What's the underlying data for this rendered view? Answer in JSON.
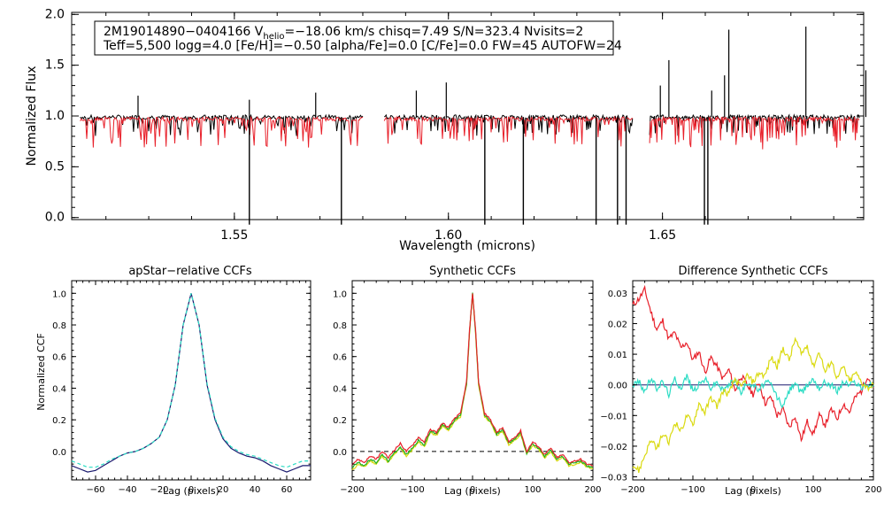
{
  "colors": {
    "black": "#000000",
    "red": "#e8202a",
    "cyan": "#2bdcc4",
    "navy": "#1a1a6e",
    "yellow": "#dada10",
    "green": "#20b020",
    "white_bg": "#ffffff"
  },
  "chart_data": [
    {
      "type": "line",
      "id": "spectrum",
      "title": "",
      "xlabel": "Wavelength (microns)",
      "ylabel": "Normalized Flux",
      "xlim": [
        1.512,
        1.697
      ],
      "ylim": [
        -0.02,
        2.02
      ],
      "xticks": [
        "1.55",
        "1.60",
        "1.65"
      ],
      "xtick_values": [
        1.55,
        1.6,
        1.65
      ],
      "yticks": [
        "0.0",
        "0.5",
        "1.0",
        "1.5",
        "2.0"
      ],
      "ytick_values": [
        0.0,
        0.5,
        1.0,
        1.5,
        2.0
      ],
      "info_line1_prefix": "2M19014890−0404166  V",
      "info_sub": "helio",
      "info_line1_suffix": "=−18.06 km/s  chisq=7.49  S/N=323.4  Nvisits=2",
      "info_line2": "Teff=5,500 logg=4.0 [Fe/H]=−0.50 [alpha/Fe]=0.0 [C/Fe]=0.0 FW=45 AUTOFW=24",
      "chips": [
        [
          1.514,
          1.58
        ],
        [
          1.585,
          1.643
        ],
        [
          1.647,
          1.696
        ]
      ],
      "series": [
        {
          "name": "observed",
          "color": "black",
          "continuum": 0.99
        },
        {
          "name": "model",
          "color": "red",
          "continuum": 0.97
        }
      ],
      "emission_spikes": [
        [
          1.5275,
          1.2
        ],
        [
          1.5535,
          1.16
        ],
        [
          1.569,
          1.23
        ],
        [
          1.5995,
          1.33
        ],
        [
          1.5925,
          1.25
        ],
        [
          1.6495,
          1.3
        ],
        [
          1.6515,
          1.55
        ],
        [
          1.6615,
          1.25
        ],
        [
          1.6645,
          1.4
        ],
        [
          1.6975,
          1.45
        ],
        [
          1.6655,
          1.85
        ],
        [
          1.6835,
          1.88
        ]
      ],
      "deep_absorptions": [
        [
          1.5535,
          0.0
        ],
        [
          1.575,
          0.0
        ],
        [
          1.6085,
          0.0
        ],
        [
          1.6175,
          0.0
        ],
        [
          1.6345,
          0.0
        ],
        [
          1.6395,
          0.0
        ],
        [
          1.6415,
          0.0
        ],
        [
          1.6598,
          0.0
        ],
        [
          1.6606,
          0.0
        ]
      ]
    },
    {
      "type": "line",
      "id": "apstar_ccf",
      "title": "apStar−relative CCFs",
      "xlabel": "Lag (pixels)",
      "ylabel": "Normalized CCF",
      "xlim": [
        -75,
        75
      ],
      "ylim": [
        -0.18,
        1.08
      ],
      "xticks": [
        "−60",
        "−40",
        "−20",
        "0",
        "20",
        "40",
        "60"
      ],
      "xtick_values": [
        -60,
        -40,
        -20,
        0,
        20,
        40,
        60
      ],
      "yticks": [
        "0.0",
        "0.2",
        "0.4",
        "0.6",
        "0.8",
        "1.0"
      ],
      "ytick_values": [
        0.0,
        0.2,
        0.4,
        0.6,
        0.8,
        1.0
      ],
      "series": [
        {
          "name": "navy",
          "color": "navy",
          "x": [
            -75,
            -70,
            -65,
            -60,
            -55,
            -50,
            -45,
            -40,
            -35,
            -30,
            -25,
            -20,
            -15,
            -10,
            -5,
            0,
            5,
            10,
            15,
            20,
            25,
            30,
            35,
            40,
            45,
            50,
            55,
            60,
            65,
            70,
            75
          ],
          "y": [
            -0.09,
            -0.11,
            -0.13,
            -0.12,
            -0.09,
            -0.06,
            -0.03,
            -0.01,
            0.0,
            0.02,
            0.05,
            0.09,
            0.2,
            0.42,
            0.8,
            1.0,
            0.8,
            0.42,
            0.2,
            0.08,
            0.02,
            -0.01,
            -0.03,
            -0.04,
            -0.06,
            -0.09,
            -0.11,
            -0.13,
            -0.11,
            -0.09,
            -0.09
          ]
        },
        {
          "name": "cyan",
          "color": "cyan",
          "x": [
            -75,
            -70,
            -65,
            -60,
            -55,
            -50,
            -45,
            -40,
            -35,
            -30,
            -25,
            -20,
            -15,
            -10,
            -5,
            0,
            5,
            10,
            15,
            20,
            25,
            30,
            35,
            40,
            45,
            50,
            55,
            60,
            65,
            70,
            75
          ],
          "y": [
            -0.06,
            -0.08,
            -0.1,
            -0.1,
            -0.08,
            -0.05,
            -0.03,
            -0.01,
            0.0,
            0.02,
            0.05,
            0.09,
            0.2,
            0.42,
            0.8,
            1.0,
            0.8,
            0.43,
            0.21,
            0.09,
            0.03,
            0.0,
            -0.02,
            -0.03,
            -0.05,
            -0.07,
            -0.09,
            -0.1,
            -0.08,
            -0.06,
            -0.06
          ]
        }
      ]
    },
    {
      "type": "line",
      "id": "synthetic_ccf",
      "title": "Synthetic CCFs",
      "xlabel": "Lag (pixels)",
      "ylabel": "",
      "xlim": [
        -200,
        200
      ],
      "ylim": [
        -0.18,
        1.08
      ],
      "xticks": [
        "−200",
        "−100",
        "0",
        "100",
        "200"
      ],
      "xtick_values": [
        -200,
        -100,
        0,
        100,
        200
      ],
      "yticks": [
        "0.0",
        "0.2",
        "0.4",
        "0.6",
        "0.8",
        "1.0"
      ],
      "ytick_values": [
        0.0,
        0.2,
        0.4,
        0.6,
        0.8,
        1.0
      ],
      "zero_line": "dashed",
      "series": [
        {
          "name": "yellow",
          "color": "yellow",
          "x": [
            -200,
            -190,
            -180,
            -170,
            -160,
            -150,
            -140,
            -130,
            -120,
            -110,
            -100,
            -90,
            -80,
            -70,
            -60,
            -50,
            -40,
            -30,
            -20,
            -10,
            -5,
            0,
            5,
            10,
            20,
            30,
            40,
            50,
            60,
            70,
            80,
            90,
            100,
            110,
            120,
            130,
            140,
            150,
            160,
            170,
            180,
            190,
            200
          ],
          "y": [
            -0.12,
            -0.08,
            -0.1,
            -0.06,
            -0.08,
            -0.03,
            -0.07,
            -0.02,
            0.02,
            -0.03,
            0.01,
            0.06,
            0.03,
            0.12,
            0.1,
            0.16,
            0.13,
            0.19,
            0.22,
            0.42,
            0.75,
            1.0,
            0.75,
            0.42,
            0.22,
            0.18,
            0.1,
            0.13,
            0.04,
            0.07,
            0.11,
            -0.02,
            0.04,
            0.01,
            -0.04,
            0.0,
            -0.06,
            -0.04,
            -0.09,
            -0.08,
            -0.07,
            -0.1,
            -0.11
          ]
        },
        {
          "name": "green",
          "color": "green",
          "x": [
            -200,
            -190,
            -180,
            -170,
            -160,
            -150,
            -140,
            -130,
            -120,
            -110,
            -100,
            -90,
            -80,
            -70,
            -60,
            -50,
            -40,
            -30,
            -20,
            -10,
            -5,
            0,
            5,
            10,
            20,
            30,
            40,
            50,
            60,
            70,
            80,
            90,
            100,
            110,
            120,
            130,
            140,
            150,
            160,
            170,
            180,
            190,
            200
          ],
          "y": [
            -0.1,
            -0.07,
            -0.09,
            -0.05,
            -0.07,
            -0.02,
            -0.06,
            -0.01,
            0.03,
            -0.02,
            0.02,
            0.07,
            0.04,
            0.13,
            0.11,
            0.17,
            0.14,
            0.2,
            0.23,
            0.43,
            0.76,
            1.0,
            0.76,
            0.43,
            0.23,
            0.19,
            0.11,
            0.14,
            0.05,
            0.08,
            0.12,
            -0.01,
            0.05,
            0.02,
            -0.03,
            0.01,
            -0.05,
            -0.03,
            -0.08,
            -0.07,
            -0.06,
            -0.09,
            -0.1
          ]
        },
        {
          "name": "red",
          "color": "red",
          "x": [
            -200,
            -190,
            -180,
            -170,
            -160,
            -150,
            -140,
            -130,
            -120,
            -110,
            -100,
            -90,
            -80,
            -70,
            -60,
            -50,
            -40,
            -30,
            -20,
            -10,
            -5,
            0,
            5,
            10,
            20,
            30,
            40,
            50,
            60,
            70,
            80,
            90,
            100,
            110,
            120,
            130,
            140,
            150,
            160,
            170,
            180,
            190,
            200
          ],
          "y": [
            -0.08,
            -0.05,
            -0.07,
            -0.03,
            -0.05,
            0.0,
            -0.04,
            0.01,
            0.05,
            0.0,
            0.04,
            0.09,
            0.06,
            0.14,
            0.12,
            0.18,
            0.15,
            0.21,
            0.24,
            0.44,
            0.77,
            1.0,
            0.77,
            0.44,
            0.24,
            0.2,
            0.12,
            0.15,
            0.06,
            0.09,
            0.13,
            0.0,
            0.06,
            0.03,
            -0.02,
            0.02,
            -0.04,
            -0.02,
            -0.07,
            -0.06,
            -0.05,
            -0.08,
            -0.09
          ]
        }
      ]
    },
    {
      "type": "line",
      "id": "difference_ccf",
      "title": "Difference Synthetic CCFs",
      "xlabel": "Lag (pixels)",
      "ylabel": "",
      "xlim": [
        -200,
        200
      ],
      "ylim": [
        -0.031,
        0.034
      ],
      "xticks": [
        "−200",
        "−100",
        "0",
        "100",
        "200"
      ],
      "xtick_values": [
        -200,
        -100,
        0,
        100,
        200
      ],
      "yticks": [
        "−0.03",
        "−0.02",
        "−0.01",
        "0.00",
        "0.01",
        "0.02",
        "0.03"
      ],
      "ytick_values": [
        -0.03,
        -0.02,
        -0.01,
        0.0,
        0.01,
        0.02,
        0.03
      ],
      "zero_line": "solid",
      "series": [
        {
          "name": "red",
          "color": "red",
          "x": [
            -200,
            -190,
            -180,
            -170,
            -160,
            -150,
            -140,
            -130,
            -120,
            -110,
            -100,
            -90,
            -80,
            -70,
            -60,
            -50,
            -40,
            -30,
            -20,
            -10,
            0,
            10,
            20,
            30,
            40,
            50,
            60,
            70,
            80,
            90,
            100,
            110,
            120,
            130,
            140,
            150,
            160,
            170,
            180,
            190,
            200
          ],
          "y": [
            0.026,
            0.028,
            0.031,
            0.024,
            0.018,
            0.021,
            0.015,
            0.017,
            0.012,
            0.014,
            0.008,
            0.011,
            0.004,
            0.009,
            0.006,
            0.002,
            0.005,
            -0.002,
            0.003,
            0.0,
            -0.003,
            0.001,
            -0.006,
            -0.004,
            -0.01,
            -0.008,
            -0.014,
            -0.01,
            -0.018,
            -0.012,
            -0.016,
            -0.01,
            -0.013,
            -0.008,
            -0.011,
            -0.006,
            -0.009,
            -0.004,
            -0.002,
            0.003,
            -0.001
          ]
        },
        {
          "name": "cyan",
          "color": "cyan",
          "x": [
            -200,
            -190,
            -180,
            -170,
            -160,
            -150,
            -140,
            -130,
            -120,
            -110,
            -100,
            -90,
            -80,
            -70,
            -60,
            -50,
            -40,
            -30,
            -20,
            -10,
            0,
            10,
            20,
            30,
            40,
            50,
            60,
            70,
            80,
            90,
            100,
            110,
            120,
            130,
            140,
            150,
            160,
            170,
            180,
            190,
            200
          ],
          "y": [
            0.0,
            0.001,
            -0.002,
            0.002,
            -0.001,
            0.001,
            -0.003,
            0.002,
            -0.001,
            0.003,
            -0.002,
            0.0,
            0.002,
            -0.001,
            0.001,
            -0.002,
            0.0,
            0.002,
            -0.003,
            0.001,
            0.0,
            -0.002,
            0.001,
            0.0,
            -0.004,
            -0.007,
            -0.002,
            0.001,
            -0.003,
            0.0,
            0.002,
            -0.001,
            0.001,
            0.0,
            -0.002,
            0.001,
            0.0,
            0.001,
            -0.001,
            0.0,
            0.0
          ]
        },
        {
          "name": "yellow",
          "color": "yellow",
          "x": [
            -200,
            -190,
            -180,
            -170,
            -160,
            -150,
            -140,
            -130,
            -120,
            -110,
            -100,
            -90,
            -80,
            -70,
            -60,
            -50,
            -40,
            -30,
            -20,
            -10,
            0,
            10,
            20,
            30,
            40,
            50,
            60,
            70,
            80,
            90,
            100,
            110,
            120,
            130,
            140,
            150,
            160,
            170,
            180,
            190,
            200
          ],
          "y": [
            -0.026,
            -0.028,
            -0.023,
            -0.018,
            -0.021,
            -0.016,
            -0.019,
            -0.012,
            -0.015,
            -0.01,
            -0.013,
            -0.006,
            -0.009,
            -0.004,
            -0.007,
            -0.002,
            -0.003,
            0.002,
            -0.001,
            0.003,
            0.001,
            0.004,
            0.003,
            0.009,
            0.006,
            0.012,
            0.008,
            0.015,
            0.01,
            0.013,
            0.006,
            0.011,
            0.004,
            0.008,
            0.002,
            0.006,
            0.001,
            0.004,
            0.001,
            -0.001,
            0.0
          ]
        }
      ]
    }
  ]
}
